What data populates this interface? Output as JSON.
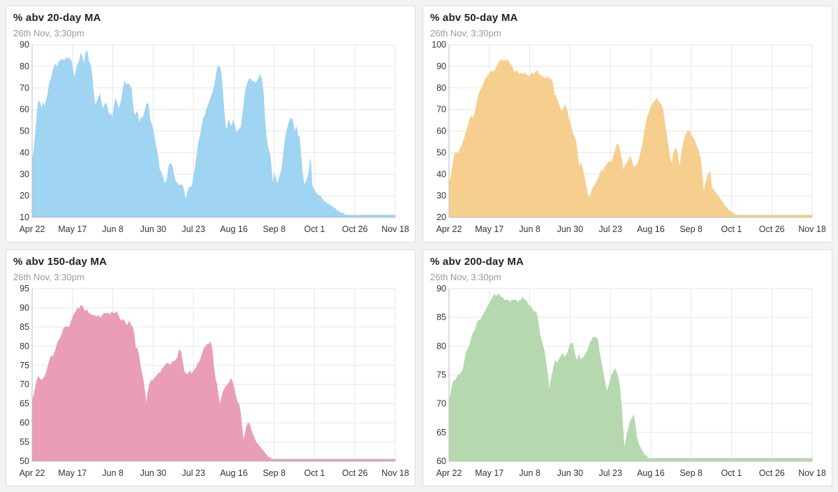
{
  "subtitle": "26th Nov, 3:30pm",
  "chart_data": [
    {
      "type": "area",
      "title": "% abv 20-day MA",
      "color": "#9fd4f2",
      "ylim": [
        10,
        90
      ],
      "yticks": [
        10,
        20,
        30,
        40,
        50,
        60,
        70,
        80,
        90
      ],
      "xlabels": [
        "Apr 22",
        "May 17",
        "Jun 8",
        "Jun 30",
        "Jul 23",
        "Aug 16",
        "Sep 8",
        "Oct 1",
        "Oct 26",
        "Nov 18"
      ],
      "x": [
        0,
        1,
        2,
        3,
        4,
        5,
        6,
        7,
        8,
        9,
        10,
        11,
        12,
        13,
        14,
        15,
        16,
        17,
        18,
        19,
        20,
        21,
        22,
        23,
        24,
        25,
        26,
        27,
        28,
        29,
        30,
        31,
        32,
        33,
        34,
        35,
        36,
        37,
        38,
        39,
        40,
        41,
        42,
        43,
        44,
        45,
        46,
        47,
        48,
        49,
        50,
        51,
        52,
        53,
        54,
        55,
        56,
        57,
        58,
        59,
        60,
        61,
        62,
        63,
        64,
        65,
        66,
        67,
        68,
        69,
        70,
        71,
        72,
        73,
        74,
        75,
        76,
        77,
        78,
        79,
        80,
        81,
        82,
        83,
        84,
        85,
        86,
        87,
        88,
        89,
        90,
        91,
        92,
        93,
        94,
        95,
        96,
        97,
        98,
        99,
        100,
        101,
        102,
        103,
        104,
        105,
        106,
        107,
        108,
        109,
        110,
        111,
        112,
        113,
        114,
        115,
        116,
        117,
        118,
        119,
        120,
        121,
        122,
        123,
        124,
        125,
        126,
        127,
        128,
        129,
        130,
        131,
        132,
        133,
        134,
        135,
        136,
        137,
        138,
        139,
        140,
        141,
        142,
        143,
        144,
        145,
        146,
        147,
        148,
        149,
        150,
        151,
        152,
        153,
        154,
        155,
        156,
        157,
        158,
        159,
        160,
        161,
        162,
        163,
        164,
        165,
        166,
        167,
        168,
        169,
        170,
        171,
        172,
        173,
        174,
        175,
        176,
        177,
        178,
        179,
        180,
        181,
        182,
        183,
        184,
        185,
        186,
        187,
        188,
        189,
        190,
        191,
        192,
        193,
        194,
        195,
        196,
        197,
        198,
        199,
        200,
        201,
        202,
        203,
        204,
        205,
        206,
        207,
        208,
        209,
        210,
        211,
        212,
        213,
        214,
        215,
        216,
        217,
        218,
        219,
        220,
        221,
        222,
        223,
        224,
        225,
        226,
        227,
        228,
        229,
        230,
        231
      ],
      "values": [
        36,
        40,
        48,
        56,
        64,
        63,
        60,
        63,
        61,
        64,
        67,
        72,
        74,
        77,
        80,
        81,
        79,
        82,
        83,
        83,
        83,
        83,
        84,
        83,
        84,
        82,
        78,
        74,
        78,
        81,
        82,
        86,
        84,
        80,
        86,
        87,
        82,
        81,
        76,
        68,
        62,
        63,
        65,
        67,
        63,
        60,
        62,
        63,
        60,
        57,
        58,
        56,
        60,
        65,
        63,
        60,
        62,
        65,
        70,
        73,
        71,
        72,
        71,
        70,
        62,
        57,
        58,
        59,
        53,
        56,
        56,
        57,
        60,
        63,
        62,
        55,
        53,
        50,
        46,
        42,
        38,
        32,
        31,
        29,
        26,
        26,
        28,
        34,
        35,
        34,
        30,
        27,
        26,
        25,
        25,
        25,
        24,
        20,
        18,
        22,
        24,
        24,
        25,
        30,
        34,
        40,
        45,
        48,
        52,
        56,
        57,
        60,
        62,
        64,
        66,
        68,
        71,
        75,
        80,
        80,
        78,
        70,
        60,
        52,
        50,
        55,
        53,
        52,
        55,
        52,
        49,
        50,
        51,
        52,
        58,
        64,
        70,
        72,
        74,
        74,
        73,
        73,
        72,
        73,
        74,
        76,
        74,
        68,
        55,
        47,
        42,
        40,
        34,
        25,
        30,
        28,
        25,
        28,
        30,
        33,
        40,
        46,
        50,
        53,
        55,
        56,
        54,
        49,
        52,
        48,
        47,
        38,
        30,
        25,
        26,
        28,
        30,
        37,
        25,
        23,
        22,
        21,
        20,
        20,
        19,
        18,
        17,
        17,
        16,
        16,
        15,
        15,
        14,
        14,
        13,
        13,
        12,
        12,
        12,
        11,
        11,
        11,
        11,
        11,
        11,
        11,
        11,
        11,
        11,
        11,
        11,
        11,
        11,
        11,
        11,
        11,
        11,
        11,
        11,
        11,
        11,
        11,
        11,
        11,
        11,
        11,
        11,
        11,
        11,
        11,
        11,
        11
      ]
    },
    {
      "type": "area",
      "title": "% abv 50-day MA",
      "color": "#f6cf8f",
      "ylim": [
        20,
        100
      ],
      "yticks": [
        20,
        30,
        40,
        50,
        60,
        70,
        80,
        90,
        100
      ],
      "xlabels": [
        "Apr 22",
        "May 17",
        "Jun 8",
        "Jun 30",
        "Jul 23",
        "Aug 16",
        "Sep 8",
        "Oct 1",
        "Oct 26",
        "Nov 18"
      ],
      "values": [
        36,
        38,
        42,
        47,
        50,
        50,
        49,
        52,
        53,
        55,
        57,
        60,
        62,
        65,
        67,
        66,
        67,
        70,
        74,
        77,
        79,
        80,
        82,
        84,
        85,
        86,
        87,
        88,
        87,
        88,
        89,
        91,
        92,
        93,
        92,
        93,
        92,
        93,
        92,
        91,
        90,
        88,
        87,
        88,
        87,
        86,
        87,
        86,
        87,
        86,
        86,
        85,
        86,
        87,
        86,
        87,
        88,
        86,
        86,
        85,
        85,
        84,
        85,
        85,
        84,
        84,
        82,
        77,
        76,
        74,
        72,
        70,
        69,
        71,
        72,
        70,
        66,
        64,
        61,
        58,
        57,
        54,
        47,
        43,
        45,
        42,
        39,
        35,
        31,
        29,
        30,
        33,
        34,
        35,
        37,
        38,
        40,
        42,
        41,
        43,
        44,
        45,
        46,
        45,
        47,
        49,
        52,
        54,
        53,
        50,
        46,
        41,
        44,
        45,
        46,
        48,
        47,
        44,
        43,
        44,
        45,
        47,
        50,
        53,
        58,
        62,
        66,
        68,
        70,
        72,
        73,
        74,
        75,
        74,
        73,
        72,
        70,
        65,
        60,
        55,
        50,
        46,
        45,
        50,
        52,
        51,
        45,
        44,
        50,
        54,
        57,
        59,
        60,
        60,
        58,
        57,
        56,
        54,
        52,
        50,
        47,
        40,
        31,
        35,
        38,
        40,
        41,
        34,
        33,
        32,
        31,
        30,
        29,
        28,
        27,
        26,
        25,
        24,
        23,
        23,
        22,
        22,
        21,
        21,
        21,
        21,
        21,
        21,
        21,
        21,
        21,
        21,
        21,
        21,
        21,
        21,
        21,
        21,
        21,
        21,
        21,
        21,
        21,
        21,
        21,
        21,
        21,
        21,
        21,
        21,
        21,
        21,
        21,
        21,
        21,
        21,
        21,
        21,
        21,
        21,
        21,
        21,
        21,
        21,
        21,
        21,
        21,
        21,
        21,
        21,
        21,
        21
      ]
    },
    {
      "type": "area",
      "title": "% abv 150-day MA",
      "color": "#e99db7",
      "ylim": [
        50,
        95
      ],
      "yticks": [
        50,
        55,
        60,
        65,
        70,
        75,
        80,
        85,
        90,
        95
      ],
      "xlabels": [
        "Apr 22",
        "May 17",
        "Jun 8",
        "Jun 30",
        "Jul 23",
        "Aug 16",
        "Sep 8",
        "Oct 1",
        "Oct 26",
        "Nov 18"
      ],
      "values": [
        65.5,
        67,
        69,
        71,
        72,
        71.5,
        71,
        71.5,
        72,
        73,
        74.5,
        76,
        77.5,
        77,
        78,
        79,
        80.5,
        81.5,
        82,
        83,
        84.5,
        85,
        85,
        85,
        85,
        86.5,
        87.5,
        88.5,
        89,
        90,
        89.5,
        90.5,
        90.5,
        89.5,
        89,
        89.5,
        88.5,
        88.5,
        88,
        88,
        88,
        87.5,
        88,
        87.5,
        87.5,
        88,
        88.5,
        88.5,
        88.5,
        88.5,
        88,
        89,
        88.5,
        88.5,
        89,
        88,
        87,
        86.5,
        87,
        86.5,
        85.5,
        85.5,
        86.5,
        85.5,
        85,
        83.5,
        79.5,
        79.5,
        78,
        75,
        73,
        71,
        68,
        64.5,
        68,
        70,
        71,
        71,
        71.5,
        72,
        72.5,
        73,
        73,
        74,
        74.5,
        75,
        75.5,
        75.5,
        75,
        75.5,
        76,
        76,
        76.5,
        77,
        79,
        78.5,
        76,
        73.5,
        73,
        72.5,
        73,
        73.5,
        72.5,
        73.5,
        74,
        74.5,
        75.5,
        76,
        77,
        78.5,
        79.5,
        80,
        80.5,
        80.5,
        81,
        79,
        74.5,
        71.5,
        70,
        67,
        64.5,
        66.5,
        68,
        69,
        69.5,
        70,
        70.5,
        71.5,
        70.5,
        69,
        67,
        65.5,
        65,
        63,
        59,
        55,
        57,
        59,
        60,
        59.5,
        58,
        57,
        56,
        55,
        54.5,
        54,
        53.5,
        53,
        52.5,
        52,
        51.5,
        51,
        51,
        50.5,
        50.5,
        50.5,
        50.5,
        50.5,
        50.5,
        50.5,
        50.5,
        50.5,
        50.5,
        50.5,
        50.5,
        50.5,
        50.5,
        50.5,
        50.5,
        50.5,
        50.5,
        50.5,
        50.5,
        50.5,
        50.5,
        50.5,
        50.5,
        50.5,
        50.5,
        50.5,
        50.5,
        50.5,
        50.5,
        50.5,
        50.5,
        50.5,
        50.5,
        50.5,
        50.5,
        50.5,
        50.5,
        50.5,
        50.5,
        50.5,
        50.5,
        50.5,
        50.5,
        50.5,
        50.5,
        50.5,
        50.5,
        50.5,
        50.5,
        50.5,
        50.5,
        50.5,
        50.5,
        50.5,
        50.5,
        50.5,
        50.5,
        50.5,
        50.5,
        50.5,
        50.5,
        50.5,
        50.5,
        50.5,
        50.5,
        50.5,
        50.5,
        50.5,
        50.5,
        50.5,
        50.5,
        50.5,
        50.5,
        50.5,
        50.5,
        50.5,
        50.5,
        50.5,
        50.5
      ]
    },
    {
      "type": "area",
      "title": "% abv 200-day MA",
      "color": "#b5d8ae",
      "ylim": [
        60,
        90
      ],
      "yticks": [
        60,
        65,
        70,
        75,
        80,
        85,
        90
      ],
      "xlabels": [
        "Apr 22",
        "May 17",
        "Jun 8",
        "Jun 30",
        "Jul 23",
        "Aug 16",
        "Sep 8",
        "Oct 1",
        "Oct 26",
        "Nov 18"
      ],
      "values": [
        70.5,
        71.5,
        73,
        74,
        74,
        74.5,
        75,
        75,
        75.5,
        76,
        77.5,
        79,
        79.5,
        80,
        81,
        82,
        82.5,
        83,
        84,
        84.5,
        84.5,
        85,
        85.5,
        86,
        86.5,
        87,
        87.5,
        88,
        88.5,
        89,
        88.5,
        89,
        89,
        88.5,
        88.5,
        88,
        88,
        88,
        88,
        87.5,
        88,
        88,
        88,
        88,
        87.5,
        88,
        88,
        88.5,
        88,
        88,
        87.5,
        87,
        87,
        86.5,
        86,
        86,
        85.5,
        84,
        82,
        81,
        80,
        79,
        77,
        75,
        72,
        74,
        75,
        76.5,
        77.5,
        77,
        77.5,
        78,
        78.5,
        78.5,
        78,
        78.5,
        79,
        80,
        80.5,
        80.5,
        79,
        78,
        77.5,
        78.5,
        77.5,
        78,
        78,
        78.5,
        79,
        79.5,
        80.5,
        81,
        81.5,
        81.5,
        81.5,
        81,
        79,
        77.5,
        76,
        74.5,
        73,
        72,
        73,
        74,
        75,
        75.5,
        76,
        75.5,
        74.5,
        73,
        70,
        66,
        62,
        63.5,
        65,
        66,
        67,
        67.5,
        68,
        66,
        64,
        63,
        62.5,
        62,
        61.5,
        61,
        61,
        60.5,
        60.5,
        60.5,
        60.5,
        60.5,
        60.5,
        60.5,
        60.5,
        60.5,
        60.5,
        60.5,
        60.5,
        60.5,
        60.5,
        60.5,
        60.5,
        60.5,
        60.5,
        60.5,
        60.5,
        60.5,
        60.5,
        60.5,
        60.5,
        60.5,
        60.5,
        60.5,
        60.5,
        60.5,
        60.5,
        60.5,
        60.5,
        60.5,
        60.5,
        60.5,
        60.5,
        60.5,
        60.5,
        60.5,
        60.5,
        60.5,
        60.5,
        60.5,
        60.5,
        60.5,
        60.5,
        60.5,
        60.5,
        60.5,
        60.5,
        60.5,
        60.5,
        60.5,
        60.5,
        60.5,
        60.5,
        60.5,
        60.5,
        60.5,
        60.5,
        60.5,
        60.5,
        60.5,
        60.5,
        60.5,
        60.5,
        60.5,
        60.5,
        60.5,
        60.5,
        60.5,
        60.5,
        60.5,
        60.5,
        60.5,
        60.5,
        60.5,
        60.5,
        60.5,
        60.5,
        60.5,
        60.5,
        60.5,
        60.5,
        60.5,
        60.5,
        60.5,
        60.5,
        60.5,
        60.5,
        60.5,
        60.5,
        60.5,
        60.5,
        60.5,
        60.5,
        60.5,
        60.5,
        60.5,
        60.5,
        60.5,
        60.5,
        60.5,
        60.5,
        60.5,
        60.5
      ]
    }
  ]
}
